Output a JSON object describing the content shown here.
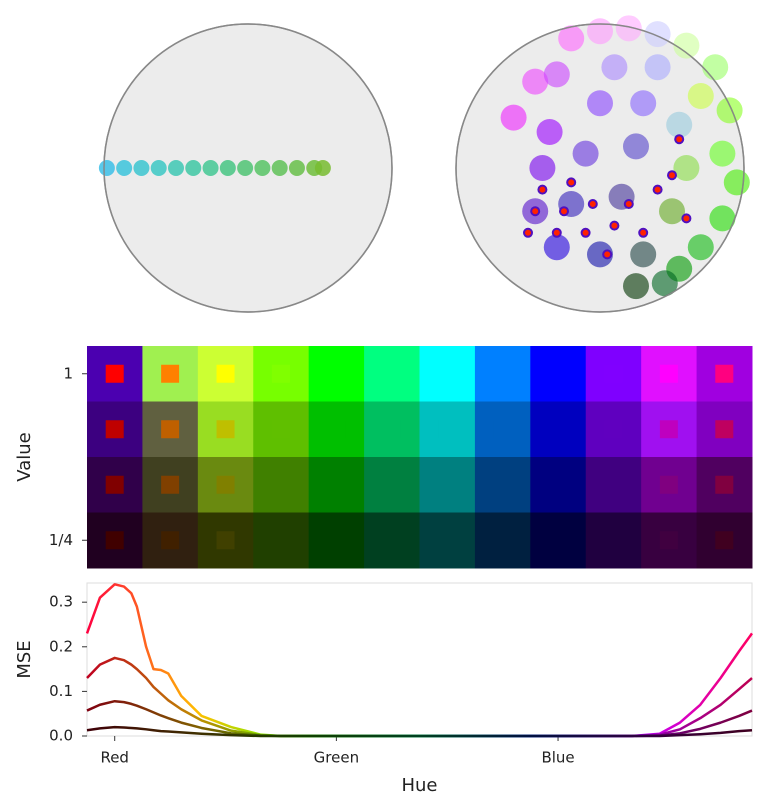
{
  "chart_data": [
    {
      "type": "disc",
      "xlim": [
        -1,
        1
      ],
      "ylim": [
        -1,
        1
      ],
      "series": [
        {
          "x": [
            -0.98,
            -0.86,
            -0.74,
            -0.62,
            -0.5,
            -0.38,
            -0.26,
            -0.14,
            -0.02,
            0.1,
            0.22,
            0.34,
            0.46,
            0.52
          ],
          "y": [
            0,
            0,
            0,
            0,
            0,
            0,
            0,
            0,
            0,
            0,
            0,
            0,
            0,
            0
          ],
          "colors": [
            "#3cc0e8",
            "#3cc4dc",
            "#3cc6d0",
            "#3cc8c4",
            "#3ec8b4",
            "#40c8a4",
            "#44c894",
            "#48c684",
            "#50c474",
            "#58c466",
            "#60c258",
            "#68c04a",
            "#70be3c",
            "#78bc30"
          ]
        }
      ]
    },
    {
      "type": "disc",
      "xlim": [
        -1,
        1
      ],
      "ylim": [
        -1,
        1
      ],
      "series": [
        {
          "x": [
            -0.2,
            0.0,
            0.2,
            0.4,
            0.6,
            0.8,
            -0.45,
            -0.6,
            -0.3,
            0.1,
            0.4,
            0.7,
            0.9,
            -0.35,
            0.0,
            0.3,
            0.55,
            0.85,
            0.95,
            -0.4,
            -0.1,
            0.25,
            0.6,
            0.85,
            -0.45,
            -0.2,
            0.15,
            0.5,
            0.7,
            -0.3,
            0.0,
            0.3,
            0.55,
            0.25,
            0.45
          ],
          "y": [
            0.9,
            0.95,
            0.97,
            0.93,
            0.85,
            0.7,
            0.6,
            0.35,
            0.65,
            0.7,
            0.7,
            0.5,
            0.4,
            0.25,
            0.45,
            0.45,
            0.3,
            0.1,
            -0.1,
            0.0,
            0.1,
            0.15,
            0.0,
            -0.35,
            -0.3,
            -0.25,
            -0.2,
            -0.3,
            -0.55,
            -0.55,
            -0.6,
            -0.6,
            -0.7,
            -0.82,
            -0.8
          ],
          "colors": [
            "#ff66ff",
            "#ff99ff",
            "#ffaaff",
            "#ccccff",
            "#ccff99",
            "#99ff66",
            "#ee44ff",
            "#ee22ff",
            "#cc44ff",
            "#aa88ff",
            "#aaaaff",
            "#ccff44",
            "#88ff22",
            "#9900ff",
            "#8844ff",
            "#8866ff",
            "#99ccdd",
            "#66ff22",
            "#44ee00",
            "#7700ee",
            "#6633dd",
            "#5544cc",
            "#88dd44",
            "#22dd00",
            "#5511cc",
            "#3322bb",
            "#443399",
            "#66aa22",
            "#11bb11",
            "#2200dd",
            "#1111aa",
            "#224444",
            "#009900",
            "#003300",
            "#006622"
          ]
        },
        {
          "x": [
            -0.5,
            -0.45,
            -0.4,
            -0.3,
            -0.25,
            -0.2,
            -0.1,
            -0.05,
            0.05,
            0.1,
            0.2,
            0.3,
            0.4,
            0.5,
            0.55,
            0.6
          ],
          "y": [
            -0.45,
            -0.3,
            -0.15,
            -0.45,
            -0.3,
            -0.1,
            -0.45,
            -0.25,
            -0.6,
            -0.4,
            -0.25,
            -0.45,
            -0.15,
            -0.05,
            0.2,
            -0.35
          ],
          "colors": [
            "#ff2200",
            "#ff2200",
            "#ff2200",
            "#ff2200",
            "#ff2200",
            "#ff2200",
            "#ff2200",
            "#ff2200",
            "#ff2200",
            "#ff2200",
            "#ff2200",
            "#ff2200",
            "#ff2200",
            "#ff2200",
            "#ff2200",
            "#ff2200"
          ]
        }
      ]
    },
    {
      "type": "heatmap",
      "ylabel": "Value",
      "xlim": [
        -15,
        345
      ],
      "ylim": [
        0.125,
        1.125
      ],
      "yticks": [
        {
          "value": 1,
          "label": "1"
        },
        {
          "value": 0.25,
          "label": "1/4"
        }
      ],
      "columns": [
        0,
        30,
        60,
        90,
        120,
        150,
        180,
        210,
        240,
        270,
        300,
        330
      ],
      "rows": [
        1,
        0.75,
        0.5,
        0.25
      ],
      "cell_colors": [
        [
          "#4b00b0",
          "#a0f050",
          "#ccff33",
          "#77ff00",
          "#00ff00",
          "#00ff80",
          "#00ffff",
          "#0080ff",
          "#0000ff",
          "#7f00ff",
          "#e010ff",
          "#a000e0"
        ],
        [
          "#3c0080",
          "#606040",
          "#99dd22",
          "#5fbf00",
          "#00bf00",
          "#00bf60",
          "#00bfbf",
          "#0060bf",
          "#0000bf",
          "#5f00bf",
          "#a010f0",
          "#8000c0"
        ],
        [
          "#30004a",
          "#404020",
          "#6a8a10",
          "#408000",
          "#008000",
          "#008040",
          "#008080",
          "#004080",
          "#000080",
          "#400080",
          "#700090",
          "#500060"
        ],
        [
          "#200020",
          "#302010",
          "#303800",
          "#204000",
          "#004000",
          "#004020",
          "#004040",
          "#002040",
          "#000040",
          "#200040",
          "#380040",
          "#300030"
        ]
      ],
      "inner_colors": [
        [
          "#ff0000",
          "#ff8000",
          "#ffff00",
          "#80ff00",
          "#00ff00",
          "#00ff80",
          "#00ffff",
          "#0080ff",
          "#0000ff",
          "#8000ff",
          "#ff00ff",
          "#ff0080"
        ],
        [
          "#bf0000",
          "#bf6000",
          "#bfbf00",
          "#60bf00",
          "#00bf00",
          "#00bf60",
          "#00bfbf",
          "#0060bf",
          "#0000bf",
          "#6000bf",
          "#bf00bf",
          "#bf0060"
        ],
        [
          "#800000",
          "#804000",
          "#808000",
          "#408000",
          "#008000",
          "#008040",
          "#008080",
          "#004080",
          "#000080",
          "#400080",
          "#800080",
          "#800040"
        ],
        [
          "#400000",
          "#402000",
          "#404000",
          "#204000",
          "#004000",
          "#004020",
          "#004040",
          "#002040",
          "#000040",
          "#200040",
          "#400040",
          "#400020"
        ]
      ]
    },
    {
      "type": "line",
      "xlabel": "Hue",
      "ylabel": "MSE",
      "xlim": [
        -15,
        345
      ],
      "ylim": [
        0,
        0.343
      ],
      "xticks": [
        {
          "value": 0,
          "label": "Red"
        },
        {
          "value": 120,
          "label": "Green"
        },
        {
          "value": 240,
          "label": "Blue"
        }
      ],
      "yticks": [
        {
          "value": 0,
          "label": "0.0"
        },
        0.1,
        0.2,
        0.3
      ],
      "x": [
        -15,
        -8,
        0,
        5,
        9,
        12,
        17,
        21,
        25,
        29,
        36,
        47,
        63,
        79,
        90,
        120,
        180,
        240,
        280,
        295,
        306,
        317,
        328,
        338,
        345
      ],
      "series": [
        {
          "values": [
            0.23,
            0.31,
            0.34,
            0.335,
            0.32,
            0.29,
            0.2,
            0.15,
            0.148,
            0.14,
            0.09,
            0.045,
            0.02,
            0.003,
            0,
            0,
            0,
            0,
            0,
            0.005,
            0.03,
            0.07,
            0.13,
            0.19,
            0.23
          ],
          "colors": [
            "#ff0040",
            "#ffbf00",
            "#40ff00",
            "#00ff80",
            "#0040ff",
            "#bf00ff",
            "#ff0060"
          ]
        },
        {
          "values": [
            0.13,
            0.16,
            0.175,
            0.17,
            0.16,
            0.15,
            0.13,
            0.11,
            0.095,
            0.08,
            0.06,
            0.035,
            0.012,
            0.002,
            0,
            0,
            0,
            0,
            0,
            0.003,
            0.015,
            0.04,
            0.07,
            0.105,
            0.13
          ],
          "colors": [
            "#bf0020",
            "#bf8f00",
            "#30bf00",
            "#00bf60",
            "#0030bf",
            "#8f00bf",
            "#bf0050"
          ]
        },
        {
          "values": [
            0.057,
            0.07,
            0.078,
            0.076,
            0.072,
            0.068,
            0.06,
            0.053,
            0.046,
            0.04,
            0.03,
            0.018,
            0.006,
            0.001,
            0,
            0,
            0,
            0,
            0,
            0.001,
            0.006,
            0.016,
            0.03,
            0.045,
            0.057
          ],
          "colors": [
            "#800010",
            "#806000",
            "#208000",
            "#008040",
            "#002080",
            "#600080",
            "#800040"
          ]
        },
        {
          "values": [
            0.013,
            0.017,
            0.02,
            0.019,
            0.018,
            0.017,
            0.015,
            0.013,
            0.011,
            0.01,
            0.008,
            0.005,
            0.002,
            0,
            0,
            0,
            0,
            0,
            0,
            0,
            0.002,
            0.004,
            0.007,
            0.011,
            0.013
          ],
          "colors": [
            "#400008",
            "#403000",
            "#104000",
            "#004020",
            "#001040",
            "#300040",
            "#400020"
          ]
        }
      ]
    }
  ]
}
